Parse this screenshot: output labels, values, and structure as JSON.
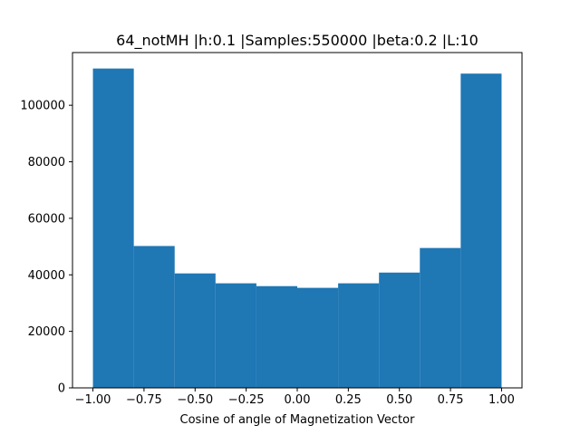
{
  "chart_data": {
    "type": "bar",
    "title": "64_notMH |h:0.1 |Samples:550000 |beta:0.2 |L:10",
    "xlabel": "Cosine of angle of Magnetization Vector",
    "ylabel": "",
    "bin_edges": [
      -1.0,
      -0.8,
      -0.6,
      -0.4,
      -0.2,
      0.0,
      0.2,
      0.4,
      0.6,
      0.8,
      1.0
    ],
    "values": [
      113000,
      50200,
      40500,
      37000,
      36000,
      35400,
      37000,
      40800,
      49500,
      111200
    ],
    "xlim": [
      -1.1,
      1.1
    ],
    "ylim": [
      0,
      118650
    ],
    "xticks": [
      -1.0,
      -0.75,
      -0.5,
      -0.25,
      0.0,
      0.25,
      0.5,
      0.75,
      1.0
    ],
    "xtick_labels": [
      "−1.00",
      "−0.75",
      "−0.50",
      "−0.25",
      "0.00",
      "0.25",
      "0.50",
      "0.75",
      "1.00"
    ],
    "yticks": [
      0,
      20000,
      40000,
      60000,
      80000,
      100000
    ],
    "ytick_labels": [
      "0",
      "20000",
      "40000",
      "60000",
      "80000",
      "100000"
    ],
    "bar_color": "#1f77b4",
    "grid": false,
    "legend": "none"
  }
}
